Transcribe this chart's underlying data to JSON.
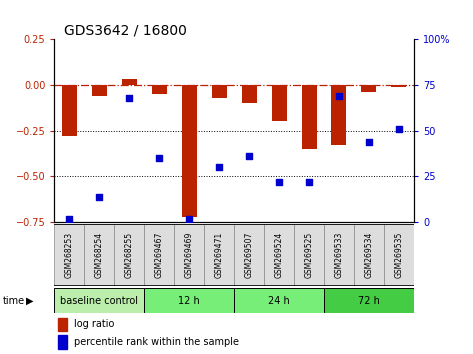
{
  "title": "GDS3642 / 16800",
  "samples": [
    "GSM268253",
    "GSM268254",
    "GSM268255",
    "GSM269467",
    "GSM269469",
    "GSM269471",
    "GSM269507",
    "GSM269524",
    "GSM269525",
    "GSM269533",
    "GSM269534",
    "GSM269535"
  ],
  "log_ratio": [
    -0.28,
    -0.06,
    0.03,
    -0.05,
    -0.72,
    -0.07,
    -0.1,
    -0.2,
    -0.35,
    -0.33,
    -0.04,
    -0.01
  ],
  "percentile_rank": [
    2,
    14,
    68,
    35,
    2,
    30,
    36,
    22,
    22,
    69,
    44,
    51
  ],
  "ylim_left": [
    -0.75,
    0.25
  ],
  "ylim_right": [
    0,
    100
  ],
  "yticks_left": [
    -0.75,
    -0.5,
    -0.25,
    0,
    0.25
  ],
  "yticks_right_vals": [
    0,
    25,
    50,
    75,
    100
  ],
  "yticks_right_labels": [
    "0",
    "25",
    "50",
    "75",
    "100%"
  ],
  "hlines": [
    -0.25,
    -0.5
  ],
  "bar_color": "#BB2200",
  "scatter_color": "#0000CC",
  "groups": [
    {
      "label": "baseline control",
      "start": 0,
      "end": 3,
      "color": "#BBEEAA"
    },
    {
      "label": "12 h",
      "start": 3,
      "end": 6,
      "color": "#77EE77"
    },
    {
      "label": "24 h",
      "start": 6,
      "end": 9,
      "color": "#77EE77"
    },
    {
      "label": "72 h",
      "start": 9,
      "end": 12,
      "color": "#44CC44"
    }
  ],
  "time_label": "time",
  "legend_bar_label": "log ratio",
  "legend_scatter_label": "percentile rank within the sample",
  "title_fontsize": 10,
  "tick_fontsize": 7,
  "sample_fontsize": 5.5,
  "group_fontsize": 7,
  "legend_fontsize": 7
}
